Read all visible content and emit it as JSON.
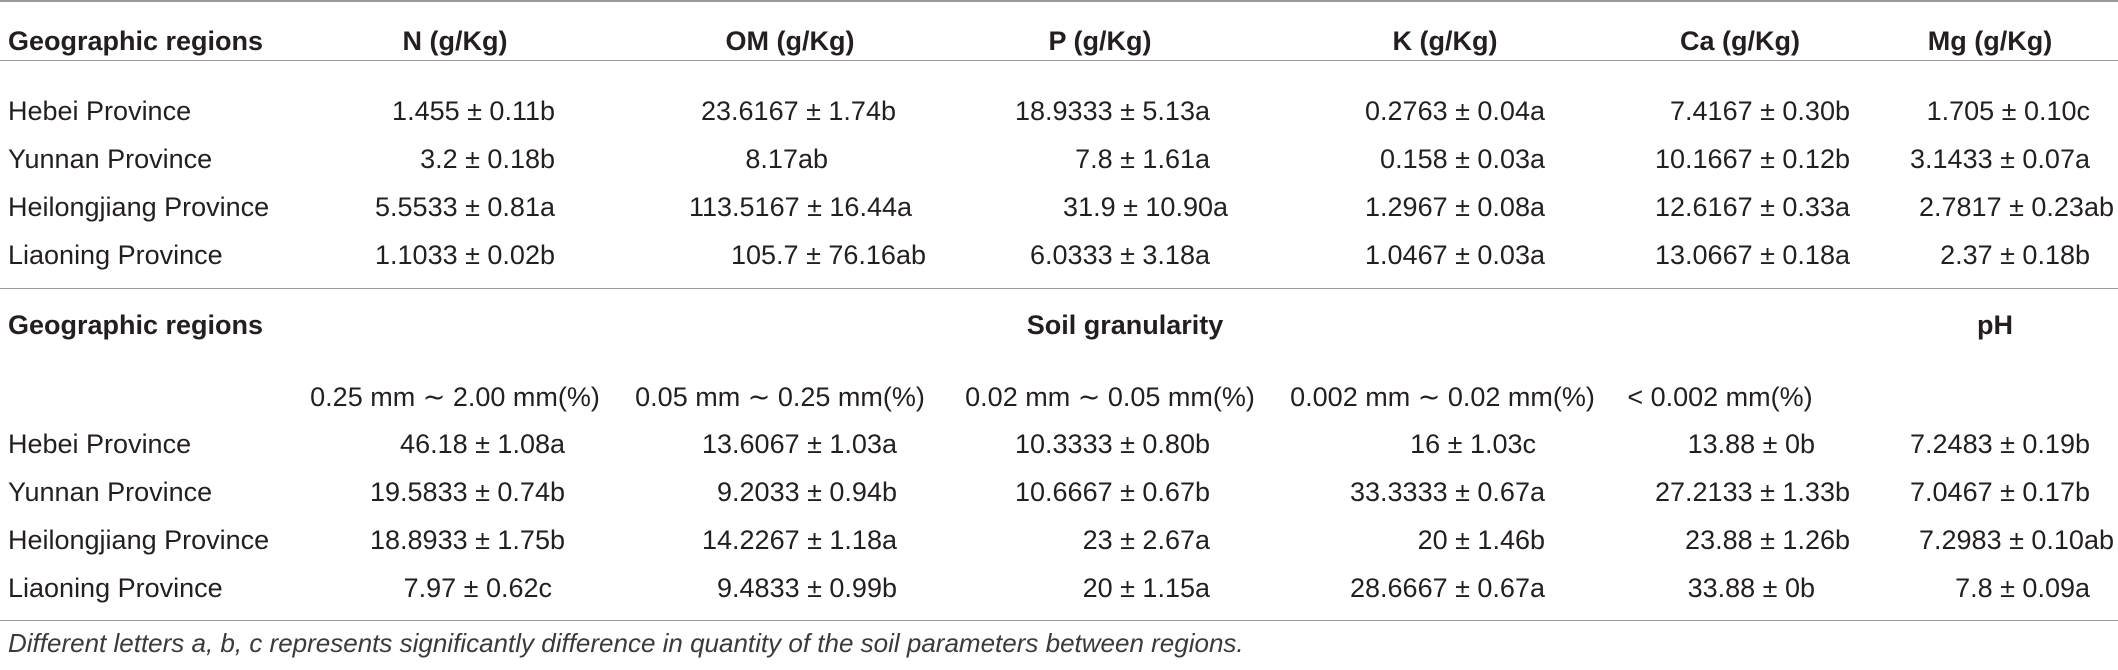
{
  "table1": {
    "headers": [
      "Geographic regions",
      "N (g/Kg)",
      "OM (g/Kg)",
      "P (g/Kg)",
      "K (g/Kg)",
      "Ca (g/Kg)",
      "Mg (g/Kg)"
    ],
    "rows": [
      [
        "Hebei Province",
        "1.455 ± 0.11b",
        "23.6167 ± 1.74b",
        "18.9333 ± 5.13a",
        "0.2763 ± 0.04a",
        "7.4167 ± 0.30b",
        "1.705 ± 0.10c"
      ],
      [
        "Yunnan Province",
        "3.2 ± 0.18b",
        "8.17ab",
        "7.8 ± 1.61a",
        "0.158 ± 0.03a",
        "10.1667 ± 0.12b",
        "3.1433 ± 0.07a"
      ],
      [
        "Heilongjiang Province",
        "5.5533 ± 0.81a",
        "113.5167 ± 16.44a",
        "31.9 ± 10.90a",
        "1.2967 ± 0.08a",
        "12.6167 ± 0.33a",
        "2.7817 ± 0.23ab"
      ],
      [
        "Liaoning Province",
        "1.1033 ± 0.02b",
        "105.7 ± 76.16ab",
        "6.0333 ± 3.18a",
        "1.0467 ± 0.03a",
        "13.0667 ± 0.18a",
        "2.37 ± 0.18b"
      ]
    ]
  },
  "table2": {
    "header_region": "Geographic regions",
    "header_group": "Soil granularity",
    "header_ph": "pH",
    "subheaders": [
      "0.25 mm ∼ 2.00 mm(%)",
      "0.05 mm ∼ 0.25 mm(%)",
      "0.02 mm ∼ 0.05 mm(%)",
      "0.002 mm ∼ 0.02 mm(%)",
      "< 0.002 mm(%)"
    ],
    "rows": [
      [
        "Hebei Province",
        "46.18 ± 1.08a",
        "13.6067 ± 1.03a",
        "10.3333 ± 0.80b",
        "16 ± 1.03c",
        "13.88 ± 0b",
        "7.2483 ± 0.19b"
      ],
      [
        "Yunnan Province",
        "19.5833 ± 0.74b",
        "9.2033 ± 0.94b",
        "10.6667 ± 0.67b",
        "33.3333 ± 0.67a",
        "27.2133 ± 1.33b",
        "7.0467 ± 0.17b"
      ],
      [
        "Heilongjiang Province",
        "18.8933 ± 1.75b",
        "14.2267 ± 1.18a",
        "23 ± 2.67a",
        "20 ± 1.46b",
        "23.88 ± 1.26b",
        "7.2983 ± 0.10ab"
      ],
      [
        "Liaoning Province",
        "7.97 ± 0.62c",
        "9.4833 ± 0.99b",
        "20 ± 1.15a",
        "28.6667 ± 0.67a",
        "33.88 ± 0b",
        "7.8 ± 0.09a"
      ]
    ]
  },
  "footnote": "Different letters a, b, c represents significantly difference in quantity of the soil parameters between regions."
}
